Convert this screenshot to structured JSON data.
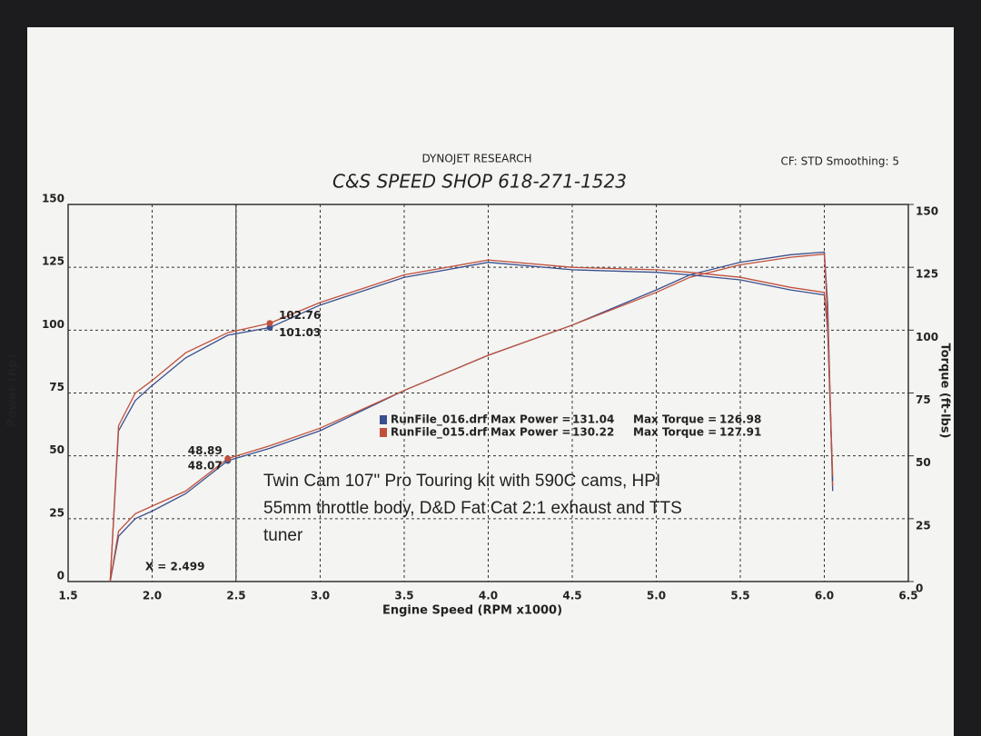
{
  "chart_data": {
    "type": "line",
    "header": "DYNOJET RESEARCH",
    "settings_text": "CF: STD  Smoothing: 5",
    "title": "C&S SPEED SHOP 618-271-1523",
    "x_label": "Engine Speed (RPM x1000)",
    "y_label": "Power (hp)",
    "y2_label": "Torque (ft-lbs)",
    "xlim": [
      1.5,
      6.5
    ],
    "xticks": [
      1.5,
      {
        "value": 2,
        "label": "2.0"
      },
      2.5,
      {
        "value": 3,
        "label": "3.0"
      },
      3.5,
      {
        "value": 4,
        "label": "4.0"
      },
      4.5,
      {
        "value": 5,
        "label": "5.0"
      },
      5.5,
      {
        "value": 6,
        "label": "6.0"
      },
      6.5
    ],
    "ylim": [
      0,
      150
    ],
    "yticks": [
      0,
      25,
      50,
      75,
      100,
      125,
      150
    ],
    "y2lim": [
      0,
      150
    ],
    "y2ticks": [
      0,
      25,
      50,
      75,
      100,
      125,
      150
    ],
    "grid": true,
    "cursor": {
      "value": 2.499,
      "label": "X = 2.499"
    },
    "legend_text": {
      "power": "Max Power =",
      "torque": "Max Torque ="
    },
    "x": [
      1.75,
      1.8,
      1.9,
      2.0,
      2.2,
      2.45,
      2.7,
      3.0,
      3.5,
      4.0,
      4.5,
      5.0,
      5.2,
      5.5,
      5.8,
      6.0,
      6.02,
      6.05
    ],
    "series": [
      {
        "name": "RunFile_016.drf",
        "color": "#3a4f8f",
        "max_power": 131.04,
        "max_torque": 126.98,
        "values": [
          0,
          18,
          25,
          28,
          35,
          48.07,
          53,
          60,
          76,
          90,
          102,
          116,
          122,
          127,
          130,
          131.04,
          110,
          36
        ]
      },
      {
        "name": "RunFile_015.drf",
        "color": "#c0503c",
        "max_power": 130.22,
        "max_torque": 127.91,
        "values": [
          0,
          20,
          27,
          30,
          36,
          48.89,
          54,
          61,
          76,
          90,
          102,
          115,
          121,
          126,
          129,
          130.22,
          105,
          38
        ]
      },
      {
        "color": "#3a4f8f",
        "axis": "y2",
        "values": [
          0,
          60,
          72,
          78,
          89,
          98,
          101.03,
          110,
          121,
          126.98,
          124,
          123,
          122,
          120,
          116,
          114,
          100,
          40
        ]
      },
      {
        "color": "#c0503c",
        "axis": "y2",
        "values": [
          0,
          62,
          75,
          80,
          91,
          99,
          102.76,
          111,
          122,
          127.91,
          125,
          124,
          123,
          121,
          117,
          115,
          102,
          42
        ]
      }
    ],
    "note_lines": [
      "Twin Cam 107\" Pro Touring kit with 590C cams, HPI",
      "55mm throttle body, D&D Fat Cat 2:1 exhaust and TTS",
      "tuner"
    ]
  }
}
